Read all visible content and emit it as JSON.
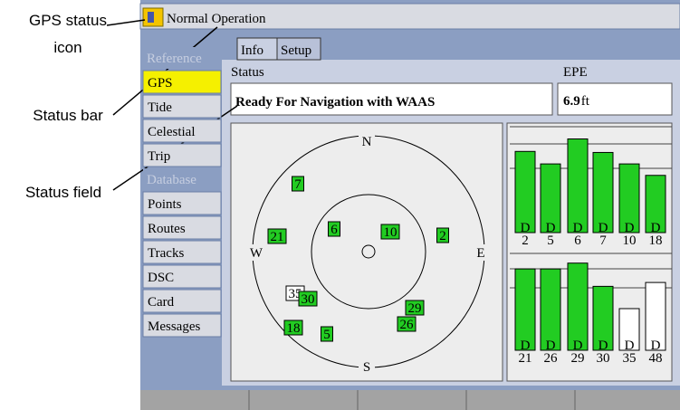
{
  "callouts": [
    {
      "lines": [
        "GPS status",
        "icon"
      ]
    },
    {
      "lines": [
        "Status bar"
      ]
    },
    {
      "lines": [
        "Status field"
      ]
    }
  ],
  "status_bar": {
    "text": "Normal Operation"
  },
  "menu": {
    "sections": [
      {
        "header": "Reference",
        "items": [
          "GPS",
          "Tide",
          "Celestial",
          "Trip"
        ]
      },
      {
        "header": "Database",
        "items": [
          "Points",
          "Routes",
          "Tracks",
          "DSC",
          "Card",
          "Messages"
        ]
      }
    ],
    "selected": "GPS"
  },
  "tabs": [
    "Info",
    "Setup"
  ],
  "status": {
    "label": "Status",
    "value": "Ready For Navigation with WAAS"
  },
  "epe": {
    "label": "EPE",
    "value": "6.9",
    "unit": "ft"
  },
  "sky": {
    "directions": [
      "N",
      "E",
      "S",
      "W"
    ],
    "satellites": [
      {
        "id": "7",
        "color": "#22cc22"
      },
      {
        "id": "21",
        "color": "#22cc22"
      },
      {
        "id": "6",
        "color": "#22cc22"
      },
      {
        "id": "10",
        "color": "#22cc22"
      },
      {
        "id": "2",
        "color": "#22cc22"
      },
      {
        "id": "35",
        "color": "#ffffff"
      },
      {
        "id": "30",
        "color": "#22cc22"
      },
      {
        "id": "29",
        "color": "#22cc22"
      },
      {
        "id": "26",
        "color": "#22cc22"
      },
      {
        "id": "18",
        "color": "#22cc22"
      },
      {
        "id": "5",
        "color": "#22cc22"
      }
    ]
  },
  "signals": {
    "rows": [
      [
        {
          "id": "2",
          "flag": "D",
          "strength": 78,
          "color": "#22cc22"
        },
        {
          "id": "5",
          "flag": "D",
          "strength": 66,
          "color": "#22cc22"
        },
        {
          "id": "6",
          "flag": "D",
          "strength": 90,
          "color": "#22cc22"
        },
        {
          "id": "7",
          "flag": "D",
          "strength": 77,
          "color": "#22cc22"
        },
        {
          "id": "10",
          "flag": "D",
          "strength": 66,
          "color": "#22cc22"
        },
        {
          "id": "18",
          "flag": "D",
          "strength": 55,
          "color": "#22cc22"
        }
      ],
      [
        {
          "id": "21",
          "flag": "D",
          "strength": 84,
          "color": "#22cc22"
        },
        {
          "id": "26",
          "flag": "D",
          "strength": 84,
          "color": "#22cc22"
        },
        {
          "id": "29",
          "flag": "D",
          "strength": 90,
          "color": "#22cc22"
        },
        {
          "id": "30",
          "flag": "D",
          "strength": 66,
          "color": "#22cc22"
        },
        {
          "id": "35",
          "flag": "D",
          "strength": 43,
          "color": "#ffffff"
        },
        {
          "id": "48",
          "flag": "D",
          "strength": 70,
          "color": "#ffffff"
        }
      ]
    ]
  }
}
